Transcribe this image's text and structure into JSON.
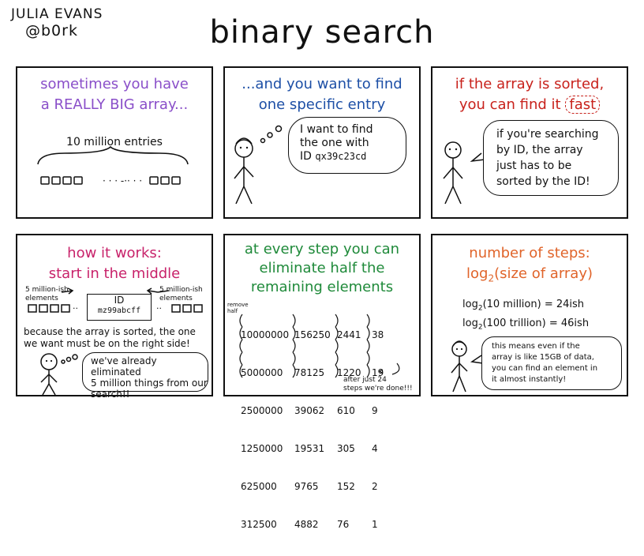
{
  "header": {
    "author_name": "JULIA EVANS",
    "author_handle": "@b0rk",
    "title": "binary search"
  },
  "panel1": {
    "heading": [
      "sometimes you have",
      "a REALLY BIG array..."
    ],
    "label": "10 million entries"
  },
  "panel2": {
    "heading": [
      "...and you want to find",
      "one specific entry"
    ],
    "speech": [
      "I want to find",
      "the one with",
      "ID"
    ],
    "speech_id": "qx39c23cd"
  },
  "panel3": {
    "heading_line1": "if the array is sorted,",
    "heading_line2": "you can find it",
    "heading_fast": "fast",
    "speech": [
      "if you're searching",
      "by ID, the array",
      "just has to be",
      "sorted by the ID!"
    ]
  },
  "panel4": {
    "heading": [
      "how it works:",
      "start in the middle"
    ],
    "left_label": [
      "5 million-ish",
      "elements"
    ],
    "right_label": [
      "5 million-ish",
      "elements"
    ],
    "middle_box_label": "ID",
    "middle_box_value": "mz99abcff",
    "explanation": [
      "because the array is sorted, the one",
      "we want must be on the right side!"
    ],
    "speech": [
      "we've already eliminated",
      "5 million things from our",
      "search!!"
    ]
  },
  "panel5": {
    "heading": [
      "at every step you can",
      "eliminate half the",
      "remaining elements"
    ],
    "margin_note": [
      "remove",
      "half"
    ],
    "columns": [
      [
        "10000000",
        "5000000",
        "2500000",
        "1250000",
        "625000",
        "312500"
      ],
      [
        "156250",
        "78125",
        "39062",
        "19531",
        "9765",
        "4882"
      ],
      [
        "2441",
        "1220",
        "610",
        "305",
        "152",
        "76"
      ],
      [
        "38",
        "19",
        "9",
        "4",
        "2",
        "1"
      ]
    ],
    "footnote": [
      "after just 24",
      "steps we're done!!!"
    ]
  },
  "panel6": {
    "heading_line1": "number of steps:",
    "heading_line2_pre": "log",
    "heading_line2_sub": "2",
    "heading_line2_post": "(size of array)",
    "eq1_pre": "log",
    "eq1_sub": "2",
    "eq1_post": "(10 million) = 24ish",
    "eq2_pre": "log",
    "eq2_sub": "2",
    "eq2_post": "(100 trillion) = 46ish",
    "speech": [
      "this means even if the",
      "array is like 15GB of data,",
      "you can find an element in",
      "it almost instantly!"
    ]
  }
}
